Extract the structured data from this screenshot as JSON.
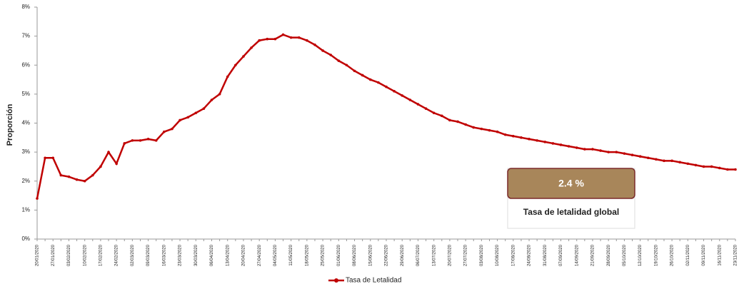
{
  "chart_data": {
    "type": "line",
    "y_label": "Proporción",
    "categories": [
      "20/01/2020",
      null,
      "27/01/2020",
      null,
      "03/02/2020",
      null,
      "10/02/2020",
      null,
      "17/02/2020",
      null,
      "24/02/2020",
      null,
      "02/03/2020",
      null,
      "09/03/2020",
      null,
      "16/03/2020",
      null,
      "23/03/2020",
      null,
      "30/03/2020",
      null,
      "06/04/2020",
      null,
      "13/04/2020",
      null,
      "20/04/2020",
      null,
      "27/04/2020",
      null,
      "04/05/2020",
      null,
      "11/05/2020",
      null,
      "18/05/2020",
      null,
      "25/05/2020",
      null,
      "01/06/2020",
      null,
      "08/06/2020",
      null,
      "15/06/2020",
      null,
      "22/06/2020",
      null,
      "29/06/2020",
      null,
      "06/07/2020",
      null,
      "13/07/2020",
      null,
      "20/07/2020",
      null,
      "27/07/2020",
      null,
      "03/08/2020",
      null,
      "10/08/2020",
      null,
      "17/08/2020",
      null,
      "24/08/2020",
      null,
      "31/08/2020",
      null,
      "07/09/2020",
      null,
      "14/09/2020",
      null,
      "21/09/2020",
      null,
      "28/09/2020",
      null,
      "05/10/2020",
      null,
      "12/10/2020",
      null,
      "19/10/2020",
      null,
      "26/10/2020",
      null,
      "02/11/2020",
      null,
      "09/11/2020",
      null,
      "16/11/2020",
      null,
      "23/11/2020"
    ],
    "series": [
      {
        "name": "Tasa de Letalidad",
        "color": "#c00000",
        "values": [
          1.4,
          2.8,
          2.8,
          2.2,
          2.15,
          2.05,
          2.0,
          2.2,
          2.5,
          3.0,
          2.6,
          3.3,
          3.4,
          3.4,
          3.45,
          3.4,
          3.7,
          3.8,
          4.1,
          4.2,
          4.35,
          4.5,
          4.8,
          5.0,
          5.6,
          6.0,
          6.3,
          6.6,
          6.85,
          6.9,
          6.9,
          7.05,
          6.95,
          6.95,
          6.85,
          6.7,
          6.5,
          6.35,
          6.15,
          6.0,
          5.8,
          5.65,
          5.5,
          5.4,
          5.25,
          5.1,
          4.95,
          4.8,
          4.65,
          4.5,
          4.35,
          4.25,
          4.1,
          4.05,
          3.95,
          3.85,
          3.8,
          3.75,
          3.7,
          3.6,
          3.55,
          3.5,
          3.45,
          3.4,
          3.35,
          3.3,
          3.25,
          3.2,
          3.15,
          3.1,
          3.1,
          3.05,
          3.0,
          3.0,
          2.95,
          2.9,
          2.85,
          2.8,
          2.75,
          2.7,
          2.7,
          2.65,
          2.6,
          2.55,
          2.5,
          2.5,
          2.45,
          2.4,
          2.4
        ]
      }
    ],
    "ylim": [
      0,
      8
    ],
    "yticks": [
      {
        "value": 0,
        "label": "0%"
      },
      {
        "value": 1,
        "label": "1%"
      },
      {
        "value": 2,
        "label": "2%"
      },
      {
        "value": 3,
        "label": "3%"
      },
      {
        "value": 4,
        "label": "4%"
      },
      {
        "value": 5,
        "label": "5%"
      },
      {
        "value": 6,
        "label": "6%"
      },
      {
        "value": 7,
        "label": "7%"
      },
      {
        "value": 8,
        "label": "8%"
      }
    ],
    "grid": false,
    "legend": "bottom",
    "annotation": {
      "value": "2.4 %",
      "text": "Tasa de letalidad global"
    }
  }
}
